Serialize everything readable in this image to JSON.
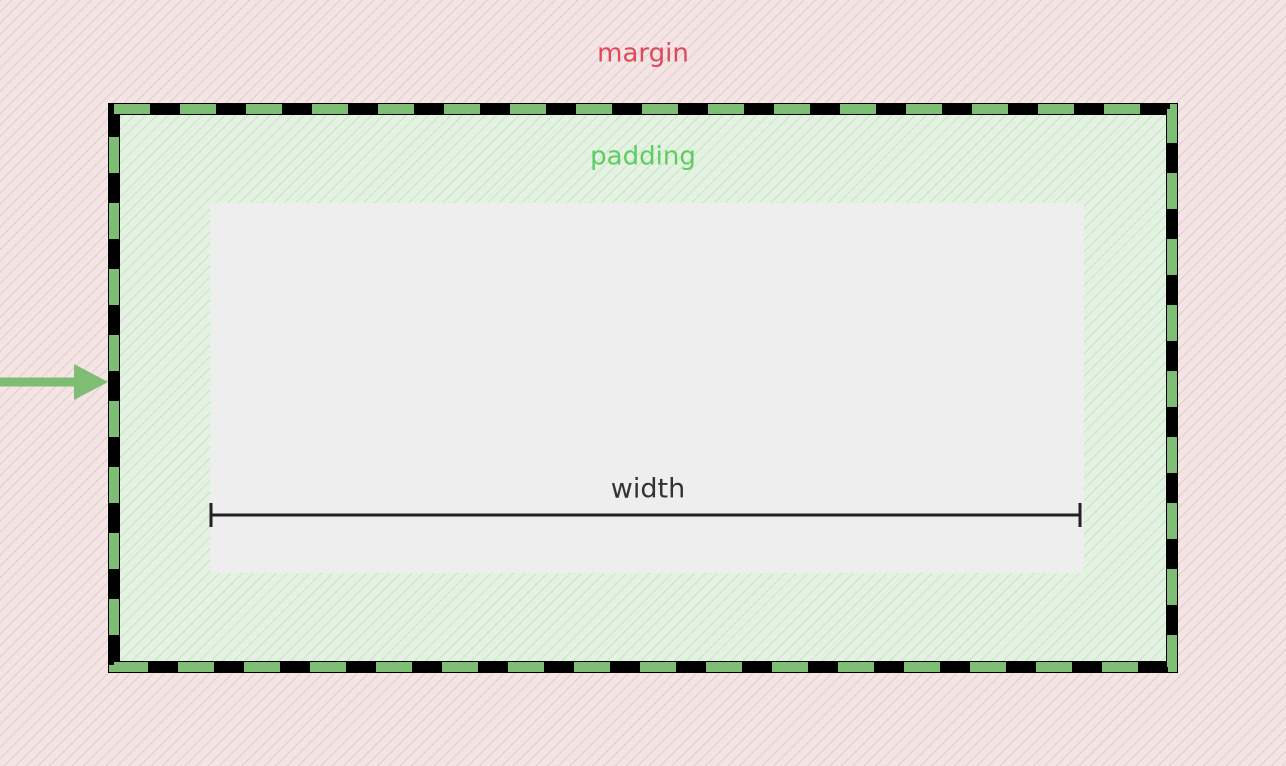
{
  "margin": {
    "label": "margin"
  },
  "padding": {
    "label": "padding"
  },
  "content": {
    "label": "width"
  }
}
